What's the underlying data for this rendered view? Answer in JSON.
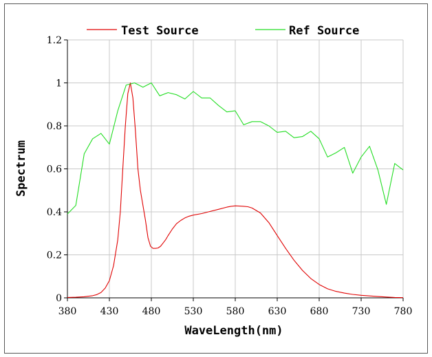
{
  "chart_data": {
    "type": "line",
    "xlabel": "WaveLength(nm)",
    "ylabel": "Spectrum",
    "xlim": [
      380,
      780
    ],
    "ylim": [
      0,
      1.2
    ],
    "x_ticks": [
      "380",
      "430",
      "480",
      "530",
      "580",
      "630",
      "680",
      "730",
      "780"
    ],
    "y_ticks": [
      "0",
      "0.2",
      "0.4",
      "0.6",
      "0.8",
      "1",
      "1.2"
    ],
    "grid": true,
    "legend_position": "top",
    "series": [
      {
        "name": "Test Source",
        "color": "#e00000",
        "x": [
          380,
          390,
          400,
          410,
          415,
          420,
          425,
          430,
          435,
          440,
          443,
          446,
          449,
          452,
          455,
          458,
          461,
          464,
          467,
          470,
          473,
          476,
          479,
          482,
          485,
          488,
          491,
          494,
          497,
          500,
          505,
          510,
          515,
          520,
          525,
          530,
          540,
          550,
          560,
          570,
          575,
          580,
          585,
          590,
          595,
          600,
          610,
          620,
          630,
          640,
          650,
          660,
          670,
          680,
          690,
          700,
          710,
          720,
          730,
          740,
          750,
          760,
          770,
          780
        ],
        "values": [
          0.002,
          0.003,
          0.005,
          0.01,
          0.015,
          0.025,
          0.045,
          0.08,
          0.15,
          0.27,
          0.4,
          0.6,
          0.8,
          0.95,
          1.0,
          0.93,
          0.78,
          0.6,
          0.5,
          0.43,
          0.36,
          0.28,
          0.24,
          0.23,
          0.23,
          0.232,
          0.24,
          0.255,
          0.27,
          0.29,
          0.32,
          0.345,
          0.36,
          0.372,
          0.38,
          0.385,
          0.392,
          0.402,
          0.412,
          0.422,
          0.426,
          0.428,
          0.427,
          0.426,
          0.424,
          0.418,
          0.395,
          0.35,
          0.29,
          0.23,
          0.175,
          0.128,
          0.09,
          0.062,
          0.042,
          0.03,
          0.022,
          0.016,
          0.012,
          0.009,
          0.006,
          0.004,
          0.002,
          0.001
        ]
      },
      {
        "name": "Ref Source",
        "color": "#22dd22",
        "x": [
          380,
          390,
          400,
          410,
          420,
          430,
          440,
          450,
          455,
          460,
          470,
          480,
          490,
          500,
          510,
          520,
          530,
          540,
          550,
          560,
          570,
          580,
          590,
          600,
          610,
          620,
          630,
          640,
          650,
          660,
          670,
          680,
          690,
          700,
          710,
          720,
          730,
          740,
          750,
          760,
          770,
          780
        ],
        "values": [
          0.39,
          0.43,
          0.67,
          0.74,
          0.765,
          0.715,
          0.87,
          0.99,
          0.995,
          1.0,
          0.98,
          1.0,
          0.94,
          0.955,
          0.945,
          0.925,
          0.96,
          0.93,
          0.93,
          0.895,
          0.865,
          0.87,
          0.805,
          0.82,
          0.82,
          0.8,
          0.77,
          0.775,
          0.745,
          0.75,
          0.775,
          0.74,
          0.655,
          0.675,
          0.7,
          0.58,
          0.655,
          0.705,
          0.595,
          0.435,
          0.625,
          0.595
        ]
      }
    ]
  }
}
